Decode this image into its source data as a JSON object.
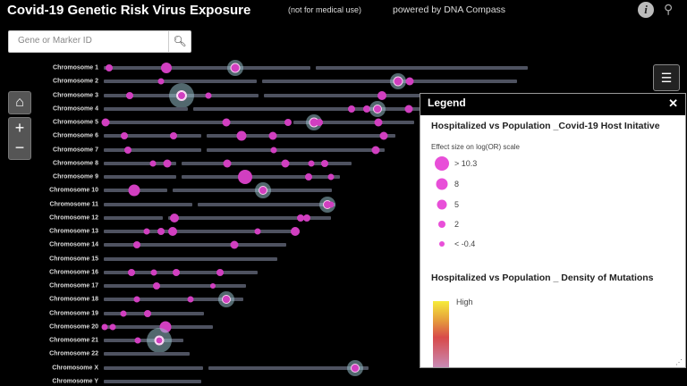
{
  "header": {
    "title": "Covid-19 Genetic Risk Virus Exposure",
    "note": "(not for medical use)",
    "powered": "powered by DNA Compass",
    "info_icon": "info-icon",
    "share_icon": "share-icon"
  },
  "search": {
    "placeholder": "Gene or Marker ID",
    "icon": "search-icon"
  },
  "controls": {
    "home": "⌂",
    "zoom_in": "+",
    "zoom_out": "−"
  },
  "chromosomes": [
    "Chromosome 1",
    "Chromosome 2",
    "Chromosome 3",
    "Chromosome 4",
    "Chromosome 5",
    "Chromosome 6",
    "Chromosome 7",
    "Chromosome 8",
    "Chromosome 9",
    "Chromosome 10",
    "Chromosome 11",
    "Chromosome 12",
    "Chromosome 13",
    "Chromosome 14",
    "Chromosome 15",
    "Chromosome 16",
    "Chromosome 17",
    "Chromosome 18",
    "Chromosome 19",
    "Chromosome 20",
    "Chromosome 21",
    "Chromosome 22",
    "Chromosome X",
    "Chromosome Y"
  ],
  "colors": {
    "marker": "#d13fc0",
    "bar": "#4e5260",
    "halo": "#96bec8"
  },
  "legend": {
    "title": "Legend",
    "section1": "Hospitalized vs Population _Covid-19 Host Initative",
    "subtitle": "Effect size on log(OR) scale",
    "sizes": [
      "> 10.3",
      "8",
      "5",
      "2",
      "< -0.4"
    ],
    "section2": "Hospitalized vs Population _ Density of Mutations",
    "high": "High"
  }
}
